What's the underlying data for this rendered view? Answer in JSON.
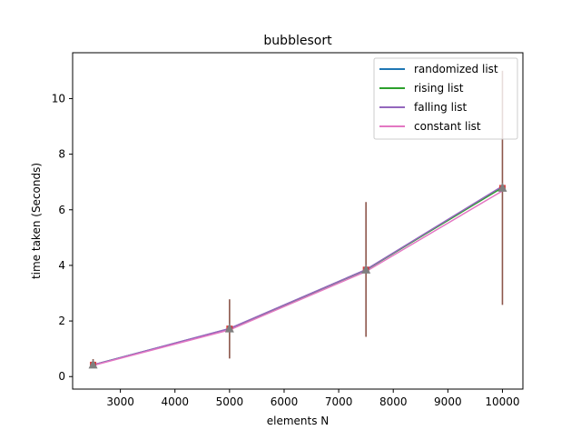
{
  "chart_data": {
    "type": "line",
    "title": "bubblesort",
    "xlabel": "elements N",
    "ylabel": "time taken (Seconds)",
    "x": [
      2500,
      5000,
      7500,
      10000
    ],
    "xlim": [
      2125,
      10375
    ],
    "ylim": [
      -0.45,
      11.65
    ],
    "xticks": [
      3000,
      4000,
      5000,
      6000,
      7000,
      8000,
      9000,
      10000
    ],
    "yticks": [
      0,
      2,
      4,
      6,
      8,
      10
    ],
    "grid": false,
    "legend_position": "top-right",
    "series": [
      {
        "name": "randomized list",
        "color": "#1f77b4",
        "values": [
          0.42,
          1.72,
          3.84,
          6.82
        ]
      },
      {
        "name": "rising list",
        "color": "#2ca02c",
        "values": [
          0.42,
          1.72,
          3.84,
          6.8
        ]
      },
      {
        "name": "falling list",
        "color": "#9467bd",
        "values": [
          0.42,
          1.73,
          3.85,
          6.85
        ]
      },
      {
        "name": "constant list",
        "color": "#e377c2",
        "values": [
          0.4,
          1.68,
          3.78,
          6.68
        ]
      }
    ],
    "error_bars": {
      "color": "#8c564b",
      "marker_color": "#7f7f7f",
      "x": [
        2500,
        5000,
        7500,
        10000
      ],
      "center": [
        0.42,
        1.72,
        3.84,
        6.78
      ],
      "low": [
        0.32,
        0.65,
        1.43,
        2.58
      ],
      "high": [
        0.63,
        2.78,
        6.28,
        11.0
      ]
    }
  }
}
